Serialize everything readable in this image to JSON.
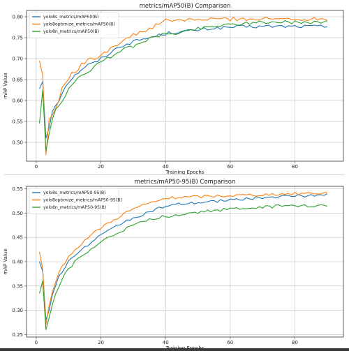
{
  "chart_data": [
    {
      "type": "line",
      "title": "metrics/mAP50(B) Comparison",
      "xlabel": "Training Epochs",
      "ylabel": "mAP Value",
      "xlim": [
        -3,
        95
      ],
      "ylim": [
        0.455,
        0.815
      ],
      "xticks": [
        0,
        20,
        40,
        60,
        80
      ],
      "yticks": [
        0.5,
        0.55,
        0.6,
        0.65,
        0.7,
        0.75,
        0.8
      ],
      "ytick_labels": [
        "0.50",
        "0.55",
        "0.60",
        "0.65",
        "0.70",
        "0.75",
        "0.80"
      ],
      "grid": true,
      "legend": "top-left",
      "series": [
        {
          "name": "yolo8s_metrics/mAP50(B)",
          "color": "#1f77b4",
          "anchors": [
            [
              1,
              0.628
            ],
            [
              2,
              0.645
            ],
            [
              3,
              0.51
            ],
            [
              4,
              0.535
            ],
            [
              5,
              0.575
            ],
            [
              6,
              0.59
            ],
            [
              7,
              0.6
            ],
            [
              8,
              0.62
            ],
            [
              10,
              0.645
            ],
            [
              12,
              0.66
            ],
            [
              14,
              0.675
            ],
            [
              16,
              0.685
            ],
            [
              18,
              0.69
            ],
            [
              20,
              0.7
            ],
            [
              22,
              0.71
            ],
            [
              24,
              0.72
            ],
            [
              26,
              0.73
            ],
            [
              28,
              0.735
            ],
            [
              30,
              0.74
            ],
            [
              32,
              0.745
            ],
            [
              34,
              0.748
            ],
            [
              36,
              0.752
            ],
            [
              38,
              0.756
            ],
            [
              40,
              0.76
            ],
            [
              42,
              0.762
            ],
            [
              44,
              0.765
            ],
            [
              46,
              0.765
            ],
            [
              48,
              0.766
            ],
            [
              50,
              0.768
            ],
            [
              52,
              0.77
            ],
            [
              54,
              0.772
            ],
            [
              56,
              0.773
            ],
            [
              58,
              0.774
            ],
            [
              60,
              0.775
            ],
            [
              65,
              0.776
            ],
            [
              70,
              0.777
            ],
            [
              75,
              0.777
            ],
            [
              80,
              0.777
            ],
            [
              85,
              0.777
            ],
            [
              90,
              0.777
            ]
          ],
          "noise": 0.004
        },
        {
          "name": "yolo8optimize_metrics/mAP50(B)",
          "color": "#ff7f0e",
          "anchors": [
            [
              1,
              0.695
            ],
            [
              2,
              0.66
            ],
            [
              3,
              0.47
            ],
            [
              4,
              0.555
            ],
            [
              5,
              0.565
            ],
            [
              6,
              0.58
            ],
            [
              7,
              0.6
            ],
            [
              8,
              0.63
            ],
            [
              10,
              0.655
            ],
            [
              12,
              0.67
            ],
            [
              14,
              0.685
            ],
            [
              16,
              0.695
            ],
            [
              18,
              0.7
            ],
            [
              20,
              0.71
            ],
            [
              22,
              0.72
            ],
            [
              24,
              0.73
            ],
            [
              26,
              0.74
            ],
            [
              28,
              0.748
            ],
            [
              30,
              0.755
            ],
            [
              32,
              0.762
            ],
            [
              34,
              0.768
            ],
            [
              36,
              0.775
            ],
            [
              38,
              0.782
            ],
            [
              40,
              0.79
            ],
            [
              45,
              0.792
            ],
            [
              50,
              0.793
            ],
            [
              55,
              0.794
            ],
            [
              60,
              0.795
            ],
            [
              65,
              0.795
            ],
            [
              70,
              0.795
            ],
            [
              75,
              0.795
            ],
            [
              80,
              0.795
            ],
            [
              85,
              0.795
            ],
            [
              90,
              0.795
            ]
          ],
          "noise": 0.005
        },
        {
          "name": "yolo8n_metrics/mAP50(B)",
          "color": "#2ca02c",
          "anchors": [
            [
              1,
              0.545
            ],
            [
              2,
              0.625
            ],
            [
              3,
              0.48
            ],
            [
              4,
              0.52
            ],
            [
              5,
              0.555
            ],
            [
              6,
              0.575
            ],
            [
              7,
              0.585
            ],
            [
              8,
              0.6
            ],
            [
              10,
              0.625
            ],
            [
              12,
              0.645
            ],
            [
              14,
              0.66
            ],
            [
              16,
              0.67
            ],
            [
              18,
              0.68
            ],
            [
              20,
              0.69
            ],
            [
              22,
              0.7
            ],
            [
              24,
              0.71
            ],
            [
              26,
              0.718
            ],
            [
              28,
              0.725
            ],
            [
              30,
              0.73
            ],
            [
              32,
              0.738
            ],
            [
              34,
              0.745
            ],
            [
              36,
              0.75
            ],
            [
              38,
              0.755
            ],
            [
              40,
              0.758
            ],
            [
              42,
              0.76
            ],
            [
              44,
              0.762
            ],
            [
              46,
              0.765
            ],
            [
              48,
              0.768
            ],
            [
              50,
              0.772
            ],
            [
              55,
              0.778
            ],
            [
              60,
              0.782
            ],
            [
              65,
              0.785
            ],
            [
              70,
              0.787
            ],
            [
              75,
              0.787
            ],
            [
              80,
              0.787
            ],
            [
              85,
              0.787
            ],
            [
              90,
              0.787
            ]
          ],
          "noise": 0.004
        }
      ]
    },
    {
      "type": "line",
      "title": "metrics/mAP50-95(B) Comparison",
      "xlabel": "Training Epochs",
      "ylabel": "mAP Value",
      "xlim": [
        -3,
        95
      ],
      "ylim": [
        0.245,
        0.555
      ],
      "xticks": [
        0,
        20,
        40,
        60,
        80
      ],
      "yticks": [
        0.25,
        0.3,
        0.35,
        0.4,
        0.45,
        0.5,
        0.55
      ],
      "ytick_labels": [
        "0.25",
        "0.30",
        "0.35",
        "0.40",
        "0.45",
        "0.50",
        "0.55"
      ],
      "grid": true,
      "legend": "top-left",
      "series": [
        {
          "name": "yolo8s_metrics/mAP50-95(B)",
          "color": "#1f77b4",
          "anchors": [
            [
              1,
              0.4
            ],
            [
              2,
              0.38
            ],
            [
              3,
              0.28
            ],
            [
              4,
              0.3
            ],
            [
              5,
              0.33
            ],
            [
              6,
              0.35
            ],
            [
              7,
              0.37
            ],
            [
              8,
              0.38
            ],
            [
              10,
              0.4
            ],
            [
              12,
              0.415
            ],
            [
              14,
              0.425
            ],
            [
              16,
              0.435
            ],
            [
              18,
              0.445
            ],
            [
              20,
              0.455
            ],
            [
              22,
              0.462
            ],
            [
              24,
              0.47
            ],
            [
              26,
              0.478
            ],
            [
              28,
              0.485
            ],
            [
              30,
              0.49
            ],
            [
              32,
              0.495
            ],
            [
              34,
              0.5
            ],
            [
              36,
              0.505
            ],
            [
              38,
              0.51
            ],
            [
              40,
              0.513
            ],
            [
              44,
              0.518
            ],
            [
              48,
              0.52
            ],
            [
              52,
              0.522
            ],
            [
              56,
              0.525
            ],
            [
              60,
              0.527
            ],
            [
              65,
              0.53
            ],
            [
              70,
              0.532
            ],
            [
              75,
              0.534
            ],
            [
              80,
              0.535
            ],
            [
              85,
              0.536
            ],
            [
              90,
              0.537
            ]
          ],
          "noise": 0.003
        },
        {
          "name": "yolo8optimize_metrics/mAP50-95(B)",
          "color": "#ff7f0e",
          "anchors": [
            [
              1,
              0.42
            ],
            [
              2,
              0.385
            ],
            [
              3,
              0.27
            ],
            [
              4,
              0.31
            ],
            [
              5,
              0.335
            ],
            [
              6,
              0.355
            ],
            [
              7,
              0.375
            ],
            [
              8,
              0.39
            ],
            [
              10,
              0.41
            ],
            [
              12,
              0.425
            ],
            [
              14,
              0.438
            ],
            [
              16,
              0.45
            ],
            [
              18,
              0.46
            ],
            [
              20,
              0.47
            ],
            [
              22,
              0.478
            ],
            [
              24,
              0.486
            ],
            [
              26,
              0.494
            ],
            [
              28,
              0.502
            ],
            [
              30,
              0.508
            ],
            [
              32,
              0.514
            ],
            [
              34,
              0.518
            ],
            [
              36,
              0.522
            ],
            [
              38,
              0.526
            ],
            [
              40,
              0.53
            ],
            [
              44,
              0.532
            ],
            [
              48,
              0.533
            ],
            [
              52,
              0.534
            ],
            [
              56,
              0.535
            ],
            [
              60,
              0.536
            ],
            [
              65,
              0.537
            ],
            [
              70,
              0.538
            ],
            [
              75,
              0.539
            ],
            [
              80,
              0.54
            ],
            [
              85,
              0.541
            ],
            [
              90,
              0.541
            ]
          ],
          "noise": 0.003
        },
        {
          "name": "yolo8n_metrics/mAP50-95(B)",
          "color": "#2ca02c",
          "anchors": [
            [
              1,
              0.335
            ],
            [
              2,
              0.36
            ],
            [
              3,
              0.26
            ],
            [
              4,
              0.285
            ],
            [
              5,
              0.315
            ],
            [
              6,
              0.335
            ],
            [
              7,
              0.35
            ],
            [
              8,
              0.365
            ],
            [
              10,
              0.385
            ],
            [
              12,
              0.4
            ],
            [
              14,
              0.41
            ],
            [
              16,
              0.42
            ],
            [
              18,
              0.43
            ],
            [
              20,
              0.44
            ],
            [
              22,
              0.448
            ],
            [
              24,
              0.455
            ],
            [
              26,
              0.462
            ],
            [
              28,
              0.468
            ],
            [
              30,
              0.474
            ],
            [
              32,
              0.479
            ],
            [
              34,
              0.484
            ],
            [
              36,
              0.488
            ],
            [
              38,
              0.491
            ],
            [
              40,
              0.493
            ],
            [
              44,
              0.497
            ],
            [
              48,
              0.5
            ],
            [
              52,
              0.503
            ],
            [
              56,
              0.506
            ],
            [
              60,
              0.508
            ],
            [
              65,
              0.51
            ],
            [
              70,
              0.512
            ],
            [
              75,
              0.514
            ],
            [
              80,
              0.515
            ],
            [
              85,
              0.515
            ],
            [
              90,
              0.514
            ]
          ],
          "noise": 0.003
        }
      ]
    }
  ]
}
